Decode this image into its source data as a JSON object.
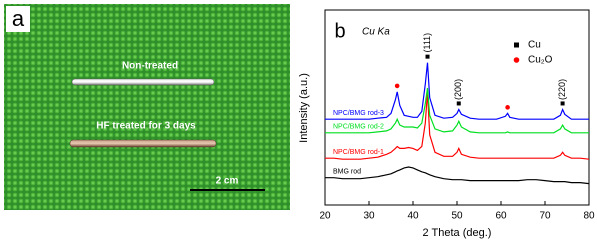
{
  "panel_a": {
    "label": "a",
    "rod_top": "Non-treated",
    "rod_bottom": "HF treated for 3 days",
    "scale_bar": "2 cm"
  },
  "chart_data": {
    "type": "line",
    "panel_label": "b",
    "subtitle": "Cu Ka",
    "x_label": "2 Theta (deg.)",
    "y_label": "Intensity (a.u.)",
    "xlim": [
      20,
      80
    ],
    "xticks": [
      20,
      30,
      40,
      50,
      60,
      70,
      80
    ],
    "ylim": [
      0,
      100
    ],
    "x": [
      20,
      22,
      24,
      26,
      28,
      30,
      32,
      34,
      35,
      36,
      36.4,
      37,
      38,
      39,
      40,
      41,
      42,
      42.8,
      43.3,
      43.8,
      45,
      47,
      49,
      50,
      50.4,
      51,
      53,
      55,
      57,
      59,
      61,
      61.5,
      62,
      64,
      66,
      68,
      70,
      72,
      73.5,
      74,
      74.5,
      76,
      78,
      80
    ],
    "series": [
      {
        "name": "BMG rod",
        "color": "#000000",
        "values": [
          14,
          14,
          13.5,
          13.5,
          13.5,
          14,
          14.5,
          15.5,
          16,
          17,
          17.5,
          18,
          19,
          19.5,
          19,
          18,
          17,
          16.5,
          16,
          15.5,
          14.5,
          13.5,
          13,
          13,
          13,
          13,
          12.5,
          12.5,
          12.5,
          12.5,
          12.5,
          12.5,
          12.5,
          12.5,
          13,
          13,
          12.5,
          12,
          12,
          12,
          12,
          11.5,
          11.5,
          11
        ]
      },
      {
        "name": "NPC/BMG rod-1",
        "color": "#ff0000",
        "values": [
          24,
          24,
          23.5,
          23.5,
          23.5,
          24,
          24.5,
          26,
          27,
          29,
          30,
          29,
          29,
          29.5,
          29,
          28,
          30,
          42,
          58,
          36,
          27,
          25,
          25,
          27,
          29,
          26,
          24.5,
          24,
          24,
          24,
          24,
          24,
          24,
          24,
          24,
          24,
          24,
          24,
          25.5,
          27,
          25.5,
          24,
          24,
          23.5
        ]
      },
      {
        "name": "NPC/BMG rod-2",
        "color": "#00e020",
        "values": [
          37,
          37,
          37,
          37,
          37,
          37,
          37.5,
          38,
          39,
          42,
          44,
          41,
          40,
          40,
          40,
          39.5,
          42,
          52,
          60,
          46,
          39,
          37.5,
          38,
          41,
          43,
          40,
          37.5,
          37,
          37,
          37,
          37,
          37.5,
          37,
          37,
          37,
          37,
          37,
          37,
          39,
          41,
          39,
          37,
          37,
          37
        ]
      },
      {
        "name": "NPC/BMG rod-3",
        "color": "#0000ff",
        "values": [
          44,
          44,
          44,
          44,
          44,
          44,
          44.5,
          45,
          47,
          54,
          58,
          51,
          46,
          45.5,
          45,
          45,
          48,
          62,
          73,
          55,
          46,
          44.5,
          45,
          47,
          49,
          46.5,
          44.5,
          44,
          44,
          44,
          45.5,
          47,
          45,
          44,
          44,
          44,
          44,
          44,
          46,
          49,
          46.5,
          44,
          44,
          44
        ]
      }
    ],
    "legend": [
      {
        "label": "Cu",
        "color": "#000000"
      },
      {
        "label": "Cu₂O",
        "color": "#ff0000"
      }
    ],
    "cu_peaks": [
      {
        "x": 43.3,
        "label": "(111)"
      },
      {
        "x": 50.4,
        "label": "(200)"
      },
      {
        "x": 74,
        "label": "(220)"
      }
    ],
    "cu2o_peaks": [
      36.4,
      61.5
    ]
  }
}
